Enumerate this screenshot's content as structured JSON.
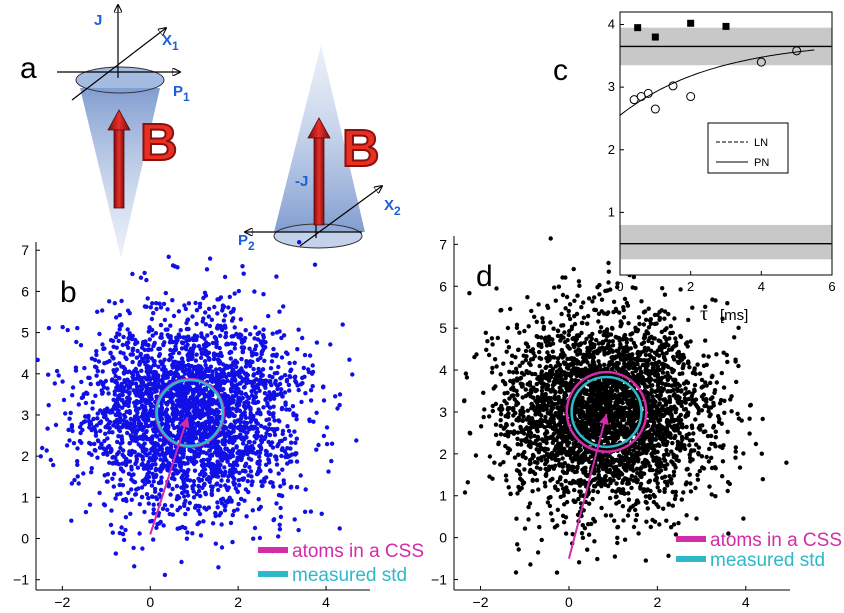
{
  "panel_labels": {
    "a": "a",
    "b": "b",
    "c": "c",
    "d": "d"
  },
  "panel_a": {
    "axis_j": "J",
    "axis_x": "X",
    "axis_x_sub": "1",
    "axis_p": "P",
    "axis_p_sub": "1",
    "field": "B"
  },
  "panel_a2": {
    "axis_j": "-J",
    "axis_x": "X",
    "axis_x_sub": "2",
    "axis_p": "P",
    "axis_p_sub": "2",
    "field": "B"
  },
  "legend": {
    "atoms": "atoms in a CSS",
    "measured": "measured std"
  },
  "colors": {
    "magenta": "#d22ca8",
    "cyan": "#2fb8c9",
    "blue_points": "#1010e6",
    "black_points": "#000000",
    "red_field": "#e83020",
    "cone": "#7f9fd4"
  },
  "chart_data": [
    {
      "id": "b",
      "type": "scatter",
      "title": "",
      "xlabel": "",
      "ylabel": "",
      "xlim": [
        -2.6,
        5.0
      ],
      "ylim": [
        -1.25,
        7.2
      ],
      "xticks": [
        "−2",
        "0",
        "2",
        "4"
      ],
      "xtick_values": [
        -2,
        0,
        2,
        4
      ],
      "yticks": [
        "−1",
        "0",
        "1",
        "2",
        "3",
        "4",
        "5",
        "6",
        "7"
      ],
      "ytick_values": [
        -1,
        0,
        1,
        2,
        3,
        4,
        5,
        6,
        7
      ],
      "center": [
        0.9,
        3.05
      ],
      "std": 1.2,
      "n_points": 3000,
      "point_color": "#1010e6",
      "circles": [
        {
          "name": "atoms in a CSS",
          "radius": 0.77,
          "color": "#d22ca8"
        },
        {
          "name": "measured std",
          "radius": 0.75,
          "color": "#2fb8c9"
        }
      ],
      "arrow": {
        "from": [
          0.0,
          0.1
        ],
        "to": [
          0.85,
          2.95
        ],
        "color": "#d22ca8"
      }
    },
    {
      "id": "d",
      "type": "scatter",
      "title": "",
      "xlabel": "",
      "ylabel": "",
      "xlim": [
        -2.6,
        5.0
      ],
      "ylim": [
        -1.25,
        7.2
      ],
      "xticks": [
        "−2",
        "0",
        "2",
        "4"
      ],
      "xtick_values": [
        -2,
        0,
        2,
        4
      ],
      "yticks": [
        "−1",
        "0",
        "1",
        "2",
        "3",
        "4",
        "5",
        "6",
        "7"
      ],
      "ytick_values": [
        -1,
        0,
        1,
        2,
        3,
        4,
        5,
        6,
        7
      ],
      "center": [
        0.85,
        3.0
      ],
      "std": 1.15,
      "n_points": 3500,
      "point_color": "#000000",
      "circles": [
        {
          "name": "atoms in a CSS",
          "radius": 0.9,
          "color": "#d22ca8"
        },
        {
          "name": "measured std",
          "radius": 0.79,
          "color": "#2fb8c9"
        }
      ],
      "arrow": {
        "from": [
          0.0,
          -0.5
        ],
        "to": [
          0.85,
          2.95
        ],
        "color": "#d22ca8"
      }
    },
    {
      "id": "c",
      "type": "scatter",
      "title": "",
      "xlabel": "τ",
      "xlabel_unit": "[ms]",
      "ylabel": "",
      "xlim": [
        0,
        6
      ],
      "ylim": [
        0,
        4.2
      ],
      "xticks": [
        "0",
        "2",
        "4",
        "6"
      ],
      "xtick_values": [
        0,
        2,
        4,
        6
      ],
      "yticks": [
        "1",
        "2",
        "3",
        "4"
      ],
      "ytick_values": [
        1,
        2,
        3,
        4
      ],
      "series": [
        {
          "marker": "square-filled",
          "x": [
            0.5,
            1.0,
            2.0,
            3.0
          ],
          "y": [
            3.95,
            3.8,
            4.02,
            3.97
          ]
        },
        {
          "marker": "circle-open",
          "x": [
            0.4,
            0.6,
            0.8,
            1.0,
            1.5,
            2.0,
            4.0,
            5.0
          ],
          "y": [
            2.8,
            2.85,
            2.9,
            2.65,
            3.02,
            2.85,
            3.4,
            3.58
          ]
        }
      ],
      "hlines": [
        {
          "y": 3.65,
          "band": [
            3.35,
            3.95
          ]
        },
        {
          "y": 0.5,
          "band": [
            0.25,
            0.8
          ]
        }
      ],
      "fit_curve": {
        "a": 3.75,
        "b": 1.2,
        "t": 2.7
      },
      "legend": [
        {
          "name": "LN",
          "style": "dashed"
        },
        {
          "name": "PN",
          "style": "solid"
        }
      ]
    }
  ]
}
